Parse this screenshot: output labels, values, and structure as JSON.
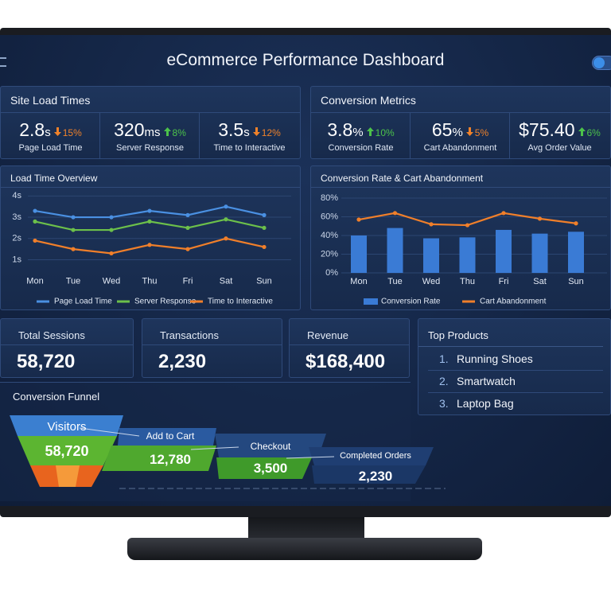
{
  "header": {
    "title": "eCommerce Performance Dashboard"
  },
  "trend_colors": {
    "down": "#f0822a",
    "up": "#4cc24a"
  },
  "site_load": {
    "title": "Site Load Times",
    "metrics": [
      {
        "value": "2.8",
        "unit": "s",
        "trend": "down",
        "change": "15%",
        "label": "Page Load Time"
      },
      {
        "value": "320",
        "unit": "ms",
        "trend": "up",
        "change": "8%",
        "label": "Server Response"
      },
      {
        "value": "3.5",
        "unit": "s",
        "trend": "down",
        "change": "12%",
        "label": "Time to Interactive"
      }
    ]
  },
  "conversion_metrics": {
    "title": "Conversion Metrics",
    "metrics": [
      {
        "value": "3.8",
        "unit": "%",
        "trend": "up",
        "change": "10%",
        "label": "Conversion Rate"
      },
      {
        "value": "65",
        "unit": "%",
        "trend": "down",
        "change": "5%",
        "label": "Cart Abandonment"
      },
      {
        "value": "$75.40",
        "trend": "up",
        "change": "6%",
        "label": "Avg Order Value"
      }
    ]
  },
  "chart_data": [
    {
      "type": "line",
      "title": "Load Time Overview",
      "categories": [
        "Mon",
        "Tue",
        "Wed",
        "Thu",
        "Fri",
        "Sat",
        "Sun"
      ],
      "series": [
        {
          "name": "Page Load Time",
          "color": "#4a90e2",
          "values": [
            3.3,
            3.0,
            3.0,
            3.3,
            3.1,
            3.5,
            3.1
          ]
        },
        {
          "name": "Server Response",
          "color": "#6cc04a",
          "values": [
            2.8,
            2.4,
            2.4,
            2.8,
            2.5,
            2.9,
            2.5
          ]
        },
        {
          "name": "Time to Interactive",
          "color": "#f07f2a",
          "values": [
            1.9,
            1.5,
            1.3,
            1.7,
            1.5,
            2.0,
            1.6
          ]
        }
      ],
      "ylim": [
        0.4,
        4.2
      ],
      "yticks": [
        {
          "value": 1,
          "label": "1s"
        },
        {
          "value": 2,
          "label": "2s"
        },
        {
          "value": 3,
          "label": "3s"
        },
        {
          "value": 4,
          "label": "4s"
        }
      ],
      "grid": true,
      "legend": "bottom"
    },
    {
      "type": "combo",
      "title": "Conversion Rate & Cart Abandonment",
      "categories": [
        "Mon",
        "Tue",
        "Wed",
        "Thu",
        "Fri",
        "Sat",
        "Sun"
      ],
      "series": [
        {
          "name": "Conversion Rate",
          "type": "bar",
          "color": "#3a7bd5",
          "values": [
            40,
            48,
            37,
            38,
            46,
            42,
            44
          ]
        },
        {
          "name": "Cart Abandonment",
          "type": "line",
          "color": "#f07f2a",
          "values": [
            57,
            64,
            52,
            51,
            64,
            58,
            53
          ]
        }
      ],
      "ylim": [
        0,
        80
      ],
      "yticks": [
        {
          "value": 0,
          "label": "0%"
        },
        {
          "value": 20,
          "label": "20%"
        },
        {
          "value": 40,
          "label": "40%"
        },
        {
          "value": 60,
          "label": "60%"
        },
        {
          "value": 80,
          "label": "80%"
        }
      ],
      "grid": true,
      "legend": "bottom"
    }
  ],
  "kpis": [
    {
      "label": "Total Sessions",
      "value": "58,720"
    },
    {
      "label": "Transactions",
      "value": "2,230"
    },
    {
      "label": "Revenue",
      "value": "$168,400"
    }
  ],
  "top_products": {
    "title": "Top Products",
    "items": [
      {
        "rank": "1.",
        "name": "Running Shoes"
      },
      {
        "rank": "2.",
        "name": "Smartwatch"
      },
      {
        "rank": "3.",
        "name": "Laptop Bag"
      }
    ]
  },
  "funnel": {
    "title": "Conversion Funnel",
    "stages": [
      {
        "label": "Visitors",
        "value": "58,720"
      },
      {
        "label": "Add to Cart",
        "value": "12,780"
      },
      {
        "label": "Checkout",
        "value": "3,500"
      },
      {
        "label": "Completed Orders",
        "value": "2,230"
      }
    ]
  }
}
